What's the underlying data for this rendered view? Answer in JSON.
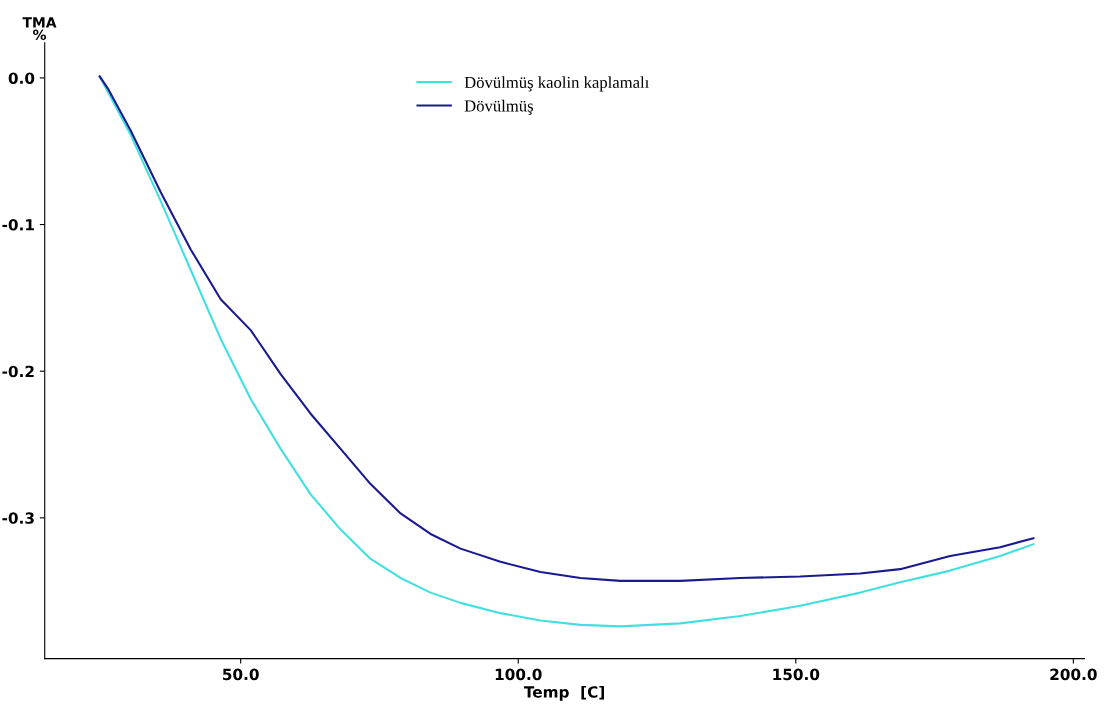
{
  "chart_data": {
    "type": "line",
    "xlabel": "Temp  [C]",
    "ylabel": "TMA\n%",
    "xlim": [
      14.7,
      202
    ],
    "xticks": [
      {
        "value": 50,
        "label": "50.0"
      },
      {
        "value": 100,
        "label": "100.0"
      },
      {
        "value": 150,
        "label": "150.0"
      },
      {
        "value": 200,
        "label": "200.0"
      }
    ],
    "ylim": [
      -0.396,
      0.024
    ],
    "yticks": [
      {
        "value": 0,
        "label": "0.0"
      },
      {
        "value": -0.1,
        "label": "-0.1"
      },
      {
        "value": -0.2,
        "label": "-0.2"
      },
      {
        "value": -0.3,
        "label": "-0.3"
      }
    ],
    "grid": false,
    "legend": "top",
    "marker": "none",
    "line_style": "solid",
    "series": [
      {
        "name": "Dövülmüş kaolin kaplamalı",
        "color": "#40e0e0",
        "x": [
          24.6,
          30.2,
          35.6,
          41,
          46.4,
          51.8,
          57.2,
          62.6,
          68,
          73.4,
          78.8,
          84.2,
          89.6,
          96.8,
          104,
          111.2,
          118.4,
          129.2,
          140,
          150.8,
          161.6,
          168.8,
          177.8,
          186.8,
          192.8
        ],
        "values": [
          0.001,
          -0.039,
          -0.084,
          -0.131,
          -0.178,
          -0.219,
          -0.253,
          -0.284,
          -0.308,
          -0.328,
          -0.341,
          -0.351,
          -0.358,
          -0.365,
          -0.37,
          -0.373,
          -0.374,
          -0.372,
          -0.367,
          -0.36,
          -0.351,
          -0.344,
          -0.336,
          -0.326,
          -0.318
        ]
      },
      {
        "name": "Dövülmüş",
        "color": "#1a1a90",
        "x": [
          24.6,
          26.2,
          30.2,
          35.6,
          41,
          46.4,
          51.8,
          57.2,
          62.6,
          68,
          73.4,
          78.8,
          84.2,
          89.6,
          96.8,
          104,
          111.2,
          118.4,
          129.2,
          140,
          150.8,
          161.6,
          168.8,
          177.8,
          186.8,
          192.8
        ],
        "values": [
          0.001,
          -0.008,
          -0.036,
          -0.078,
          -0.117,
          -0.151,
          -0.172,
          -0.202,
          -0.229,
          -0.253,
          -0.277,
          -0.297,
          -0.311,
          -0.321,
          -0.33,
          -0.337,
          -0.341,
          -0.343,
          -0.343,
          -0.341,
          -0.34,
          -0.338,
          -0.335,
          -0.326,
          -0.32,
          -0.314
        ]
      }
    ]
  }
}
